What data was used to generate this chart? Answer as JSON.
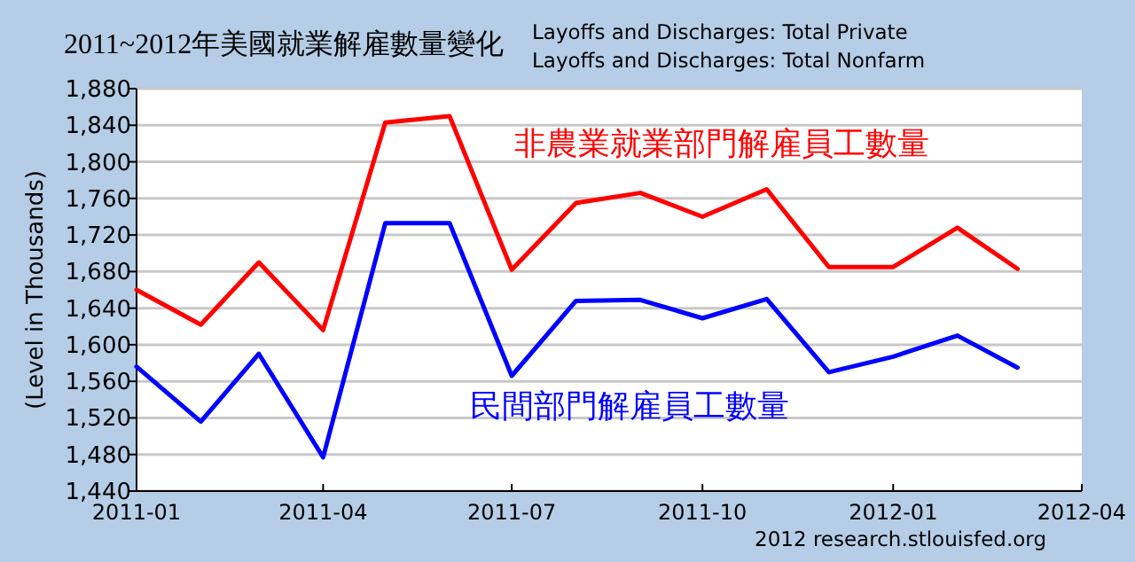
{
  "chart_data": {
    "type": "line",
    "title": "2011~2012年美國就業解雇數量變化",
    "ylabel": "(Level in Thousands)",
    "x": [
      "2011-01",
      "2011-02",
      "2011-03",
      "2011-04",
      "2011-05",
      "2011-06",
      "2011-07",
      "2011-08",
      "2011-09",
      "2011-10",
      "2011-11",
      "2011-12",
      "2012-01",
      "2012-02",
      "2012-03"
    ],
    "series": [
      {
        "name": "非農業就業部門解雇員工數量",
        "color": "#ff0000",
        "values": [
          1660,
          1622,
          1690,
          1616,
          1843,
          1850,
          1682,
          1755,
          1766,
          1740,
          1770,
          1685,
          1685,
          1728,
          1683
        ]
      },
      {
        "name": "民間部門解雇員工數量",
        "color": "#0000ff",
        "values": [
          1576,
          1516,
          1590,
          1477,
          1733,
          1733,
          1566,
          1648,
          1649,
          1629,
          1650,
          1570,
          1587,
          1610,
          1575
        ]
      }
    ],
    "xlim": [
      "2011-01",
      "2012-04"
    ],
    "xticks": [
      "2011-01",
      "2011-04",
      "2011-07",
      "2011-10",
      "2012-01",
      "2012-04"
    ],
    "ylim": [
      1440,
      1880
    ],
    "yticks": [
      {
        "value": 1440,
        "label": "1,440"
      },
      {
        "value": 1480,
        "label": "1,480"
      },
      {
        "value": 1520,
        "label": "1,520"
      },
      {
        "value": 1560,
        "label": "1,560"
      },
      {
        "value": 1600,
        "label": "1,600"
      },
      {
        "value": 1640,
        "label": "1,640"
      },
      {
        "value": 1680,
        "label": "1,680"
      },
      {
        "value": 1720,
        "label": "1,720"
      },
      {
        "value": 1760,
        "label": "1,760"
      },
      {
        "value": 1800,
        "label": "1,800"
      },
      {
        "value": 1840,
        "label": "1,840"
      },
      {
        "value": 1880,
        "label": "1,880"
      }
    ],
    "grid": "y",
    "annotations": [
      "Layoffs and Discharges: Total Private",
      "Layoffs and Discharges: Total Nonfarm",
      "2012 research.stlouisfed.org"
    ]
  }
}
